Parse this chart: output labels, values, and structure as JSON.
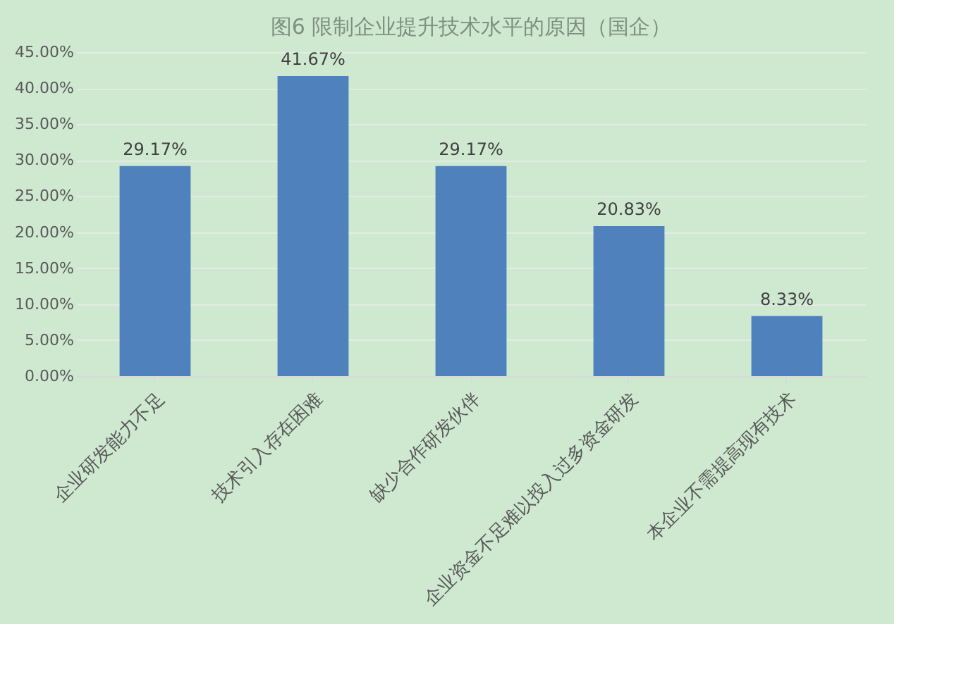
{
  "chart_data": {
    "type": "bar",
    "title": "图6 限制企业提升技术水平的原因（国企）",
    "categories": [
      "企业研发能力不足",
      "技术引入存在困难",
      "缺少合作研发伙伴",
      "企业资金不足难以投入过多资金研发",
      "本企业不需提高现有技术"
    ],
    "values": [
      29.17,
      41.67,
      29.17,
      20.83,
      8.33
    ],
    "value_labels": [
      "29.17%",
      "41.67%",
      "29.17%",
      "20.83%",
      "8.33%"
    ],
    "color": "#4f81bd",
    "ylim": [
      0,
      45
    ],
    "yticks": [
      {
        "value": 0,
        "label": "0.00%"
      },
      {
        "value": 5,
        "label": "5.00%"
      },
      {
        "value": 10,
        "label": "10.00%"
      },
      {
        "value": 15,
        "label": "15.00%"
      },
      {
        "value": 20,
        "label": "20.00%"
      },
      {
        "value": 25,
        "label": "25.00%"
      },
      {
        "value": 30,
        "label": "30.00%"
      },
      {
        "value": 35,
        "label": "35.00%"
      },
      {
        "value": 40,
        "label": "40.00%"
      },
      {
        "value": 45,
        "label": "45.00%"
      }
    ],
    "grid": "y"
  }
}
